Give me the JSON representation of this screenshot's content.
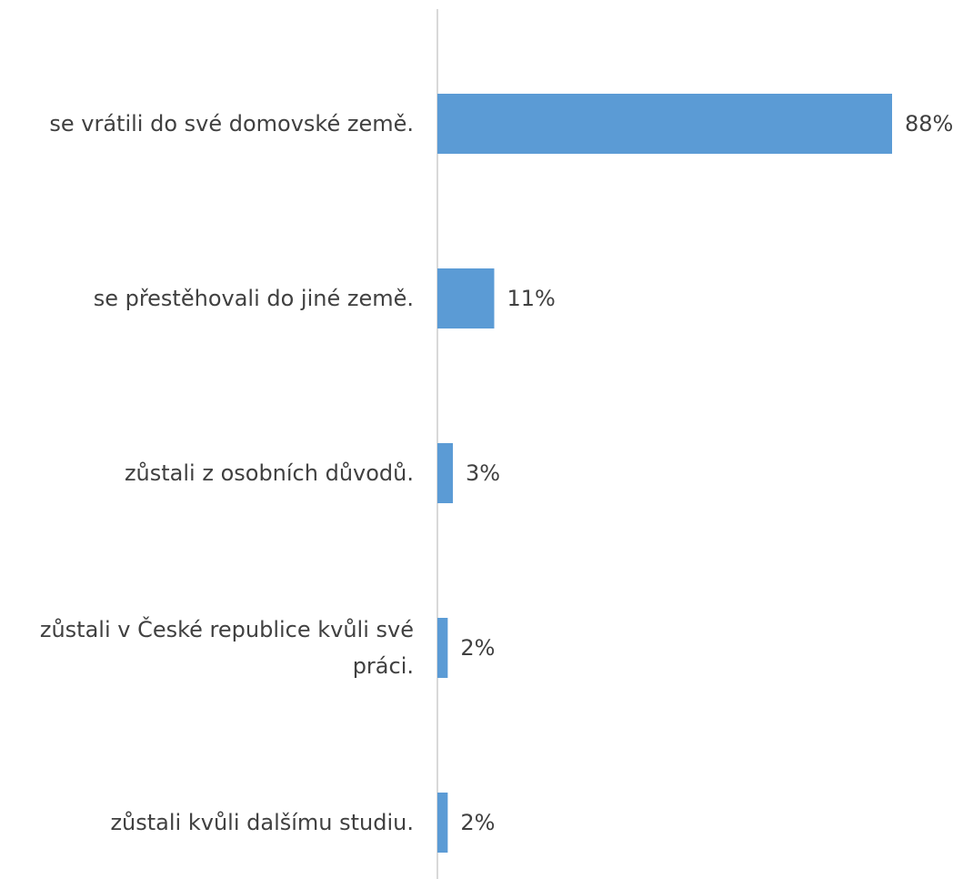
{
  "chart_data": {
    "type": "bar",
    "orientation": "horizontal",
    "categories": [
      "se vrátili do své domovské země.",
      "se přestěhovali do jiné země.",
      "zůstali z osobních důvodů.",
      "zůstali v České republice kvůli své práci.",
      "zůstali kvůli dalšímu studiu."
    ],
    "values": [
      88,
      11,
      3,
      2,
      2
    ],
    "value_labels": [
      "88%",
      "11%",
      "3%",
      "2%",
      "2%"
    ],
    "xlim": [
      0,
      88
    ],
    "bar_color": "#5b9bd5",
    "axis_color": "#d9d9d9",
    "grid": false,
    "legend": false
  }
}
